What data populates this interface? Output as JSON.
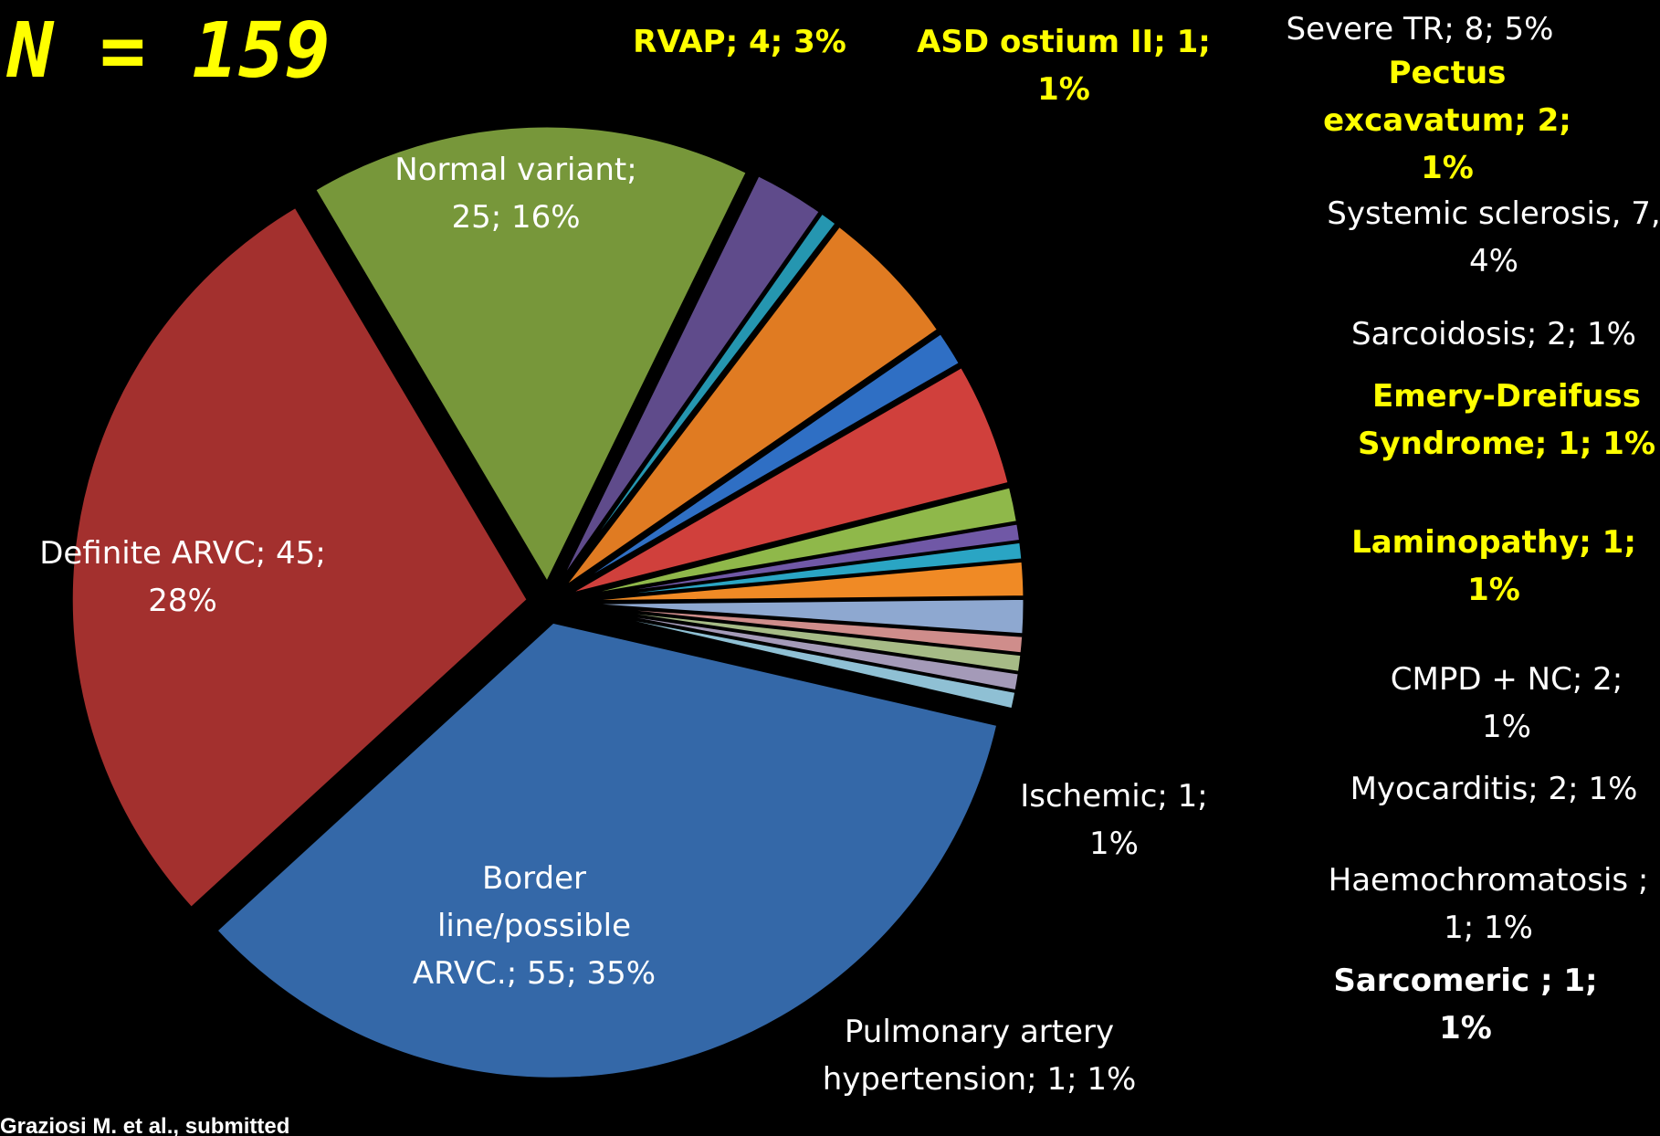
{
  "chart_data": {
    "type": "pie",
    "title": "N = 159",
    "source": "Graziosi M. et al., submitted",
    "values": [
      25,
      4,
      1,
      8,
      2,
      7,
      2,
      1,
      1,
      2,
      2,
      1,
      1,
      1,
      1,
      55,
      45
    ],
    "value_labels": [
      "Normal variant; 25; 16%",
      "RVAP; 4; 3%",
      "ASD ostium II; 1; 1%",
      "Severe TR; 8; 5%",
      "Pectus excavatum; 2; 1%",
      "Systemic sclerosis, 7, 4%",
      "Sarcoidosis; 2; 1%",
      "Emery-Dreifuss Syndrome; 1; 1%",
      "Laminopathy; 1; 1%",
      "CMPD + NC; 2; 1%",
      "Myocarditis; 2; 1%",
      "Haemochromatosis ; 1; 1%",
      "Sarcomeric ; 1; 1%",
      "Ischemic; 1; 1%",
      "Pulmonary artery hypertension; 1; 1%",
      "Border line/possible ARVC.; 55; 35%",
      "Definite ARVC; 45; 28%"
    ],
    "colors": [
      "#77973a",
      "#5f4b8b",
      "#2596b0",
      "#e07b22",
      "#2f6fc4",
      "#d0403c",
      "#8fb84a",
      "#7058a6",
      "#2aa5c4",
      "#f08a25",
      "#8ea8d0",
      "#cf8d8b",
      "#a6bb86",
      "#a49ab8",
      "#8fc0d4",
      "#3468a8",
      "#a3302e"
    ]
  }
}
